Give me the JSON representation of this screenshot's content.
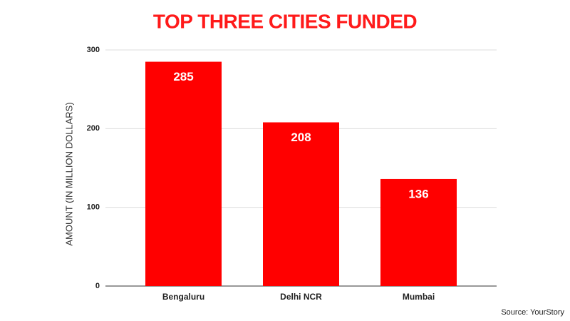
{
  "chart_data": {
    "type": "bar",
    "title": "TOP THREE CITIES FUNDED",
    "y_label": "AMOUNT (IN MILLION DOLLARS)",
    "categories": [
      "Bengaluru",
      "Delhi NCR",
      "Mumbai"
    ],
    "values": [
      285,
      208,
      136
    ],
    "color": "#ff0000",
    "ylim": [
      0,
      300
    ],
    "yticks": [
      0,
      100,
      200,
      300
    ],
    "grid": true,
    "source": "Source: YourStory"
  }
}
